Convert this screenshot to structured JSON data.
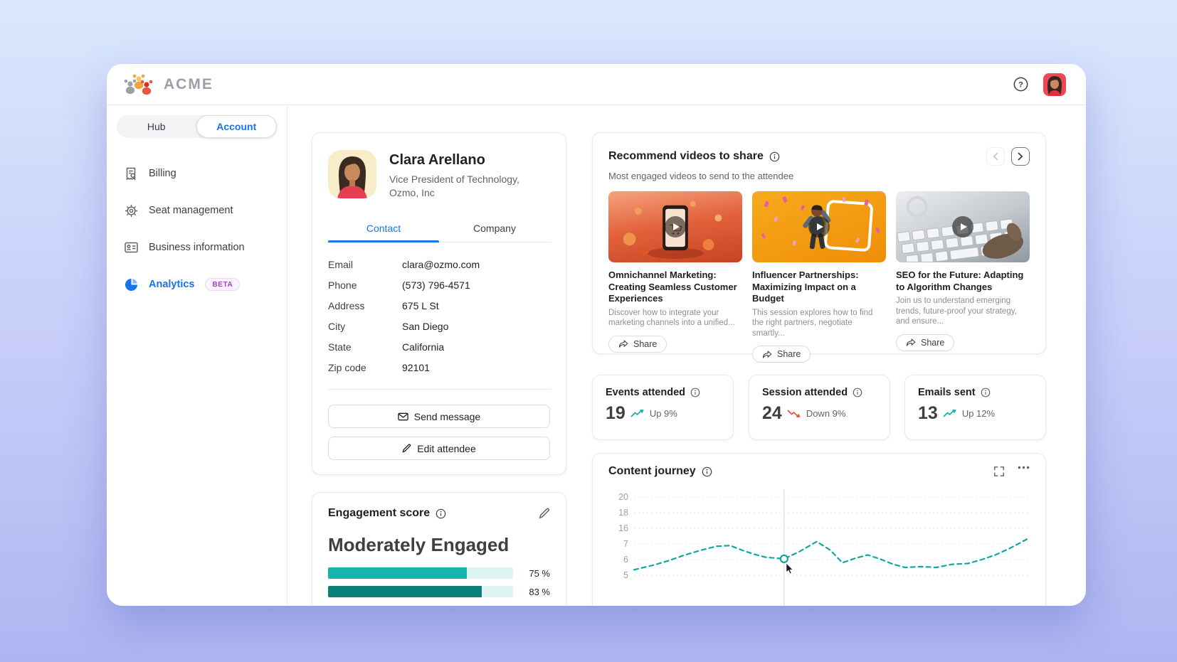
{
  "header": {
    "brand": "ACME"
  },
  "sidebar": {
    "tabs": {
      "hub": "Hub",
      "account": "Account"
    },
    "items": [
      {
        "label": "Billing",
        "icon": "receipt-icon"
      },
      {
        "label": "Seat management",
        "icon": "gear-icon"
      },
      {
        "label": "Business information",
        "icon": "id-card-icon"
      },
      {
        "label": "Analytics",
        "icon": "pie-chart-icon",
        "badge": "BETA",
        "active": true
      }
    ]
  },
  "profile": {
    "name": "Clara Arellano",
    "role": "Vice President of Technology,",
    "company": "Ozmo, Inc",
    "tabs": {
      "contact": "Contact",
      "company": "Company"
    },
    "fields": [
      {
        "label": "Email",
        "value": "clara@ozmo.com"
      },
      {
        "label": "Phone",
        "value": "(573) 796-4571"
      },
      {
        "label": "Address",
        "value": "675 L St"
      },
      {
        "label": "City",
        "value": "San Diego"
      },
      {
        "label": "State",
        "value": "California"
      },
      {
        "label": "Zip code",
        "value": "92101"
      }
    ],
    "actions": {
      "send_message": "Send message",
      "edit_attendee": "Edit attendee"
    }
  },
  "videos": {
    "title": "Recommend videos to share",
    "subtitle": "Most engaged videos to send to the attendee",
    "share_label": "Share",
    "items": [
      {
        "title": "Omnichannel Marketing: Creating Seamless Customer Experiences",
        "description": "Discover how to integrate your marketing channels into a unified..."
      },
      {
        "title": "Influencer Partnerships: Maximizing Impact on a Budget",
        "description": "This session explores how to find the right partners, negotiate smartly..."
      },
      {
        "title": "SEO for the Future: Adapting to Algorithm Changes",
        "description": "Join us to understand emerging trends, future-proof your strategy, and ensure..."
      }
    ]
  },
  "stats": [
    {
      "label": "Events attended",
      "value": "19",
      "trend": "up",
      "trend_label": "Up 9%"
    },
    {
      "label": "Session attended",
      "value": "24",
      "trend": "down",
      "trend_label": "Down 9%"
    },
    {
      "label": "Emails sent",
      "value": "13",
      "trend": "up",
      "trend_label": "Up 12%"
    }
  ],
  "engagement": {
    "title": "Engagement score",
    "level": "Moderately Engaged",
    "bars": [
      {
        "value": 75,
        "label": "75 %"
      },
      {
        "value": 83,
        "label": "83 %"
      }
    ]
  },
  "journey": {
    "title": "Content journey"
  },
  "chart_data": {
    "type": "line",
    "title": "Content journey",
    "y_tick_labels": [
      20,
      18,
      16,
      7,
      6,
      5
    ],
    "grid": "dashed-horizontal",
    "legend": "none",
    "line_style": "dashed",
    "color": "#0fa7a0",
    "crosshair_x": 0.382,
    "highlight_point": {
      "x": 0.382,
      "value": 6.05
    },
    "series": [
      {
        "name": "content-journey",
        "points": [
          [
            0.0,
            5.35
          ],
          [
            0.05,
            5.65
          ],
          [
            0.09,
            5.95
          ],
          [
            0.13,
            6.3
          ],
          [
            0.17,
            6.6
          ],
          [
            0.21,
            6.85
          ],
          [
            0.245,
            6.9
          ],
          [
            0.275,
            6.6
          ],
          [
            0.305,
            6.35
          ],
          [
            0.335,
            6.15
          ],
          [
            0.382,
            6.05
          ],
          [
            0.42,
            6.5
          ],
          [
            0.465,
            7.15
          ],
          [
            0.5,
            6.6
          ],
          [
            0.53,
            5.8
          ],
          [
            0.565,
            6.1
          ],
          [
            0.595,
            6.3
          ],
          [
            0.625,
            6.05
          ],
          [
            0.66,
            5.7
          ],
          [
            0.69,
            5.5
          ],
          [
            0.73,
            5.55
          ],
          [
            0.77,
            5.5
          ],
          [
            0.81,
            5.7
          ],
          [
            0.85,
            5.75
          ],
          [
            0.885,
            6.0
          ],
          [
            0.92,
            6.3
          ],
          [
            0.955,
            6.7
          ],
          [
            0.985,
            7.1
          ],
          [
            1.0,
            7.3
          ]
        ]
      }
    ]
  }
}
